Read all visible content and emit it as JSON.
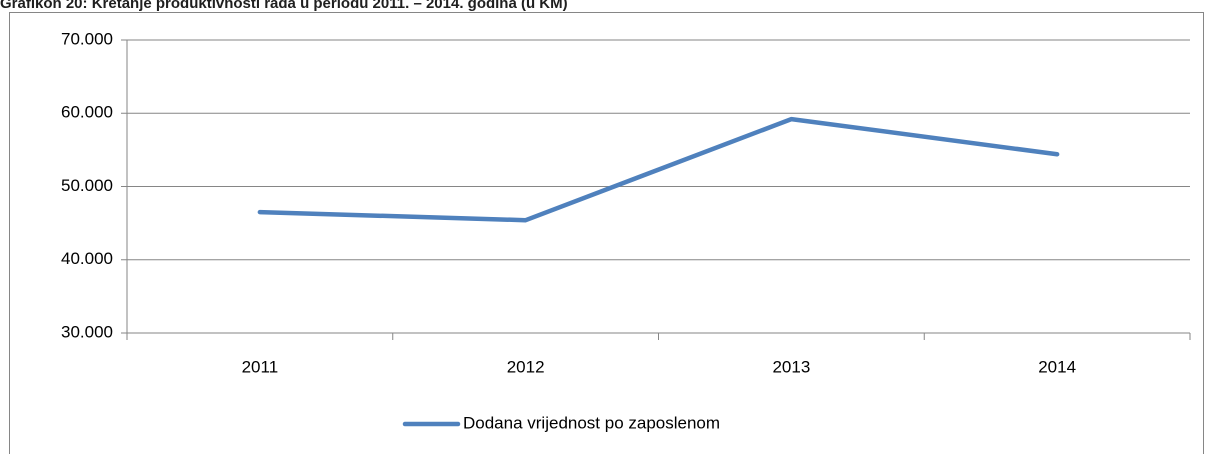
{
  "chart_data": {
    "type": "line",
    "title": "Grafikon 20: Kretanje produktivnosti rada u periodu 2011. – 2014. godina (u KM)",
    "categories": [
      "2011",
      "2012",
      "2013",
      "2014"
    ],
    "series": [
      {
        "name": "Dodana vrijednost po zaposlenom",
        "color": "#4f81bd",
        "values": [
          46500,
          45400,
          59200,
          54400
        ]
      }
    ],
    "ylim": [
      30000,
      70000
    ],
    "yticks": [
      {
        "value": 30000,
        "label": "30.000"
      },
      {
        "value": 40000,
        "label": "40.000"
      },
      {
        "value": 50000,
        "label": "50.000"
      },
      {
        "value": 60000,
        "label": "60.000"
      },
      {
        "value": 70000,
        "label": "70.000"
      }
    ],
    "grid": true,
    "legend": "bottom"
  }
}
